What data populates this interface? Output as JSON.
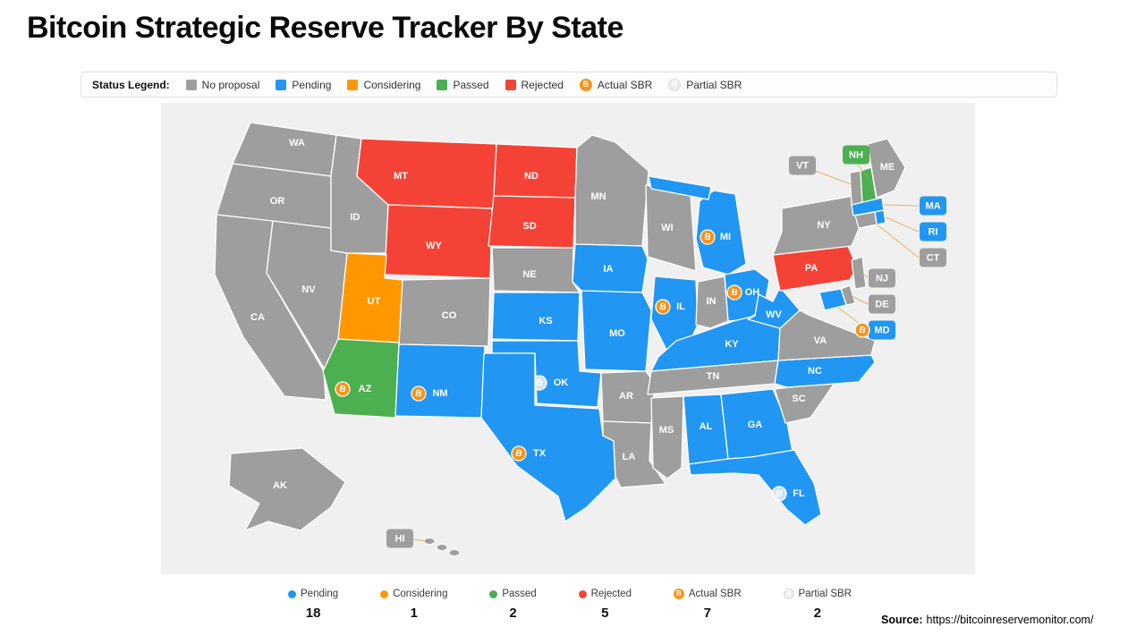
{
  "title": "Bitcoin Strategic Reserve Tracker By State",
  "legend": {
    "label": "Status Legend:",
    "items": [
      {
        "key": "no_proposal",
        "label": "No proposal",
        "color": "#9e9e9e",
        "icon": "square"
      },
      {
        "key": "pending",
        "label": "Pending",
        "color": "#2196f3",
        "icon": "square"
      },
      {
        "key": "considering",
        "label": "Considering",
        "color": "#ff9800",
        "icon": "square"
      },
      {
        "key": "passed",
        "label": "Passed",
        "color": "#4caf50",
        "icon": "square"
      },
      {
        "key": "rejected",
        "label": "Rejected",
        "color": "#f44336",
        "icon": "square"
      },
      {
        "key": "actual_sbr",
        "label": "Actual SBR",
        "color": "#f7931a",
        "icon": "bitcoin-icon"
      },
      {
        "key": "partial_sbr",
        "label": "Partial SBR",
        "color": "#ededed",
        "icon": "bitcoin-pale-icon"
      }
    ]
  },
  "bitcoin_symbol": "B",
  "map": {
    "background": "#f0f0f0",
    "states": [
      {
        "abbr": "WA",
        "status": "no_proposal"
      },
      {
        "abbr": "OR",
        "status": "no_proposal"
      },
      {
        "abbr": "CA",
        "status": "no_proposal"
      },
      {
        "abbr": "NV",
        "status": "no_proposal"
      },
      {
        "abbr": "ID",
        "status": "no_proposal"
      },
      {
        "abbr": "MT",
        "status": "rejected"
      },
      {
        "abbr": "WY",
        "status": "rejected"
      },
      {
        "abbr": "UT",
        "status": "considering"
      },
      {
        "abbr": "CO",
        "status": "no_proposal"
      },
      {
        "abbr": "AZ",
        "status": "passed",
        "badge": "actual_sbr"
      },
      {
        "abbr": "NM",
        "status": "pending",
        "badge": "actual_sbr"
      },
      {
        "abbr": "ND",
        "status": "rejected"
      },
      {
        "abbr": "SD",
        "status": "rejected"
      },
      {
        "abbr": "NE",
        "status": "no_proposal"
      },
      {
        "abbr": "KS",
        "status": "pending"
      },
      {
        "abbr": "OK",
        "status": "pending",
        "badge": "partial_sbr"
      },
      {
        "abbr": "TX",
        "status": "pending",
        "badge": "actual_sbr"
      },
      {
        "abbr": "MN",
        "status": "no_proposal"
      },
      {
        "abbr": "IA",
        "status": "pending"
      },
      {
        "abbr": "MO",
        "status": "pending"
      },
      {
        "abbr": "AR",
        "status": "no_proposal"
      },
      {
        "abbr": "LA",
        "status": "no_proposal"
      },
      {
        "abbr": "WI",
        "status": "no_proposal"
      },
      {
        "abbr": "IL",
        "status": "pending",
        "badge": "actual_sbr"
      },
      {
        "abbr": "IN",
        "status": "no_proposal"
      },
      {
        "abbr": "MI",
        "status": "pending",
        "badge": "actual_sbr"
      },
      {
        "abbr": "OH",
        "status": "pending",
        "badge": "actual_sbr"
      },
      {
        "abbr": "KY",
        "status": "pending"
      },
      {
        "abbr": "TN",
        "status": "no_proposal"
      },
      {
        "abbr": "MS",
        "status": "no_proposal"
      },
      {
        "abbr": "AL",
        "status": "pending"
      },
      {
        "abbr": "GA",
        "status": "pending"
      },
      {
        "abbr": "FL",
        "status": "pending",
        "badge": "partial_sbr"
      },
      {
        "abbr": "SC",
        "status": "no_proposal"
      },
      {
        "abbr": "NC",
        "status": "pending"
      },
      {
        "abbr": "VA",
        "status": "no_proposal"
      },
      {
        "abbr": "WV",
        "status": "pending"
      },
      {
        "abbr": "PA",
        "status": "rejected"
      },
      {
        "abbr": "NY",
        "status": "no_proposal"
      },
      {
        "abbr": "ME",
        "status": "no_proposal"
      },
      {
        "abbr": "VT",
        "status": "no_proposal"
      },
      {
        "abbr": "NH",
        "status": "passed"
      },
      {
        "abbr": "MA",
        "status": "pending"
      },
      {
        "abbr": "RI",
        "status": "pending"
      },
      {
        "abbr": "CT",
        "status": "no_proposal"
      },
      {
        "abbr": "NJ",
        "status": "no_proposal"
      },
      {
        "abbr": "DE",
        "status": "no_proposal"
      },
      {
        "abbr": "MD",
        "status": "pending",
        "badge": "actual_sbr"
      },
      {
        "abbr": "AK",
        "status": "no_proposal"
      },
      {
        "abbr": "HI",
        "status": "no_proposal"
      }
    ]
  },
  "summary": [
    {
      "key": "pending",
      "label": "Pending",
      "count": "18"
    },
    {
      "key": "considering",
      "label": "Considering",
      "count": "1"
    },
    {
      "key": "passed",
      "label": "Passed",
      "count": "2"
    },
    {
      "key": "rejected",
      "label": "Rejected",
      "count": "5"
    },
    {
      "key": "actual_sbr",
      "label": "Actual SBR",
      "count": "7"
    },
    {
      "key": "partial_sbr",
      "label": "Partial SBR",
      "count": "2"
    }
  ],
  "source": {
    "label": "Source:",
    "url": "https://bitcoinreservemonitor.com/"
  }
}
